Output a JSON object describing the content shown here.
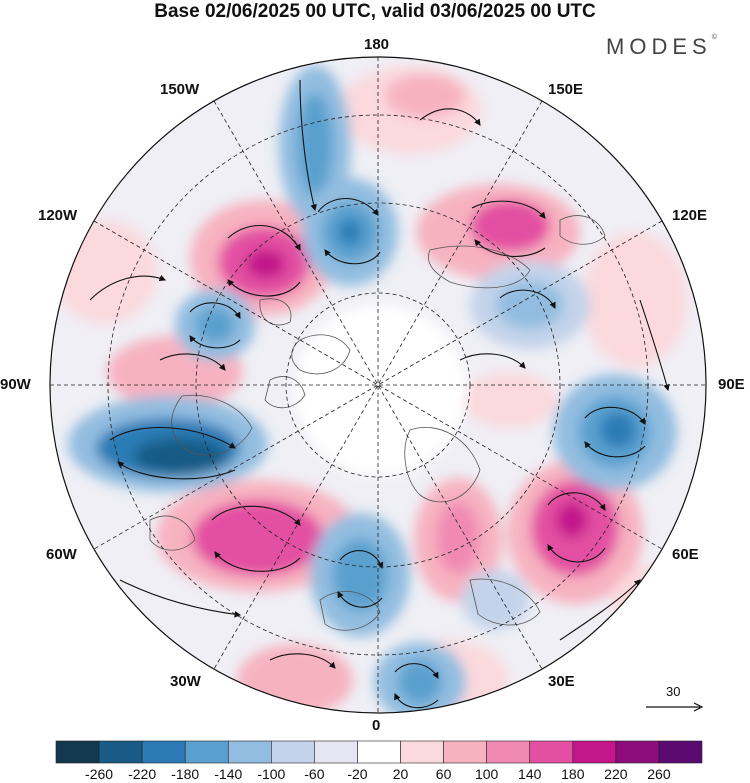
{
  "header": {
    "title": "Base 02/06/2025 00 UTC, valid 03/06/2025 00 UTC",
    "brand": "MODES",
    "brand_mark": "©"
  },
  "map": {
    "projection": "north-polar-stereographic",
    "longitude_labels": {
      "top": "180",
      "top_right": "150E",
      "upper_right": "120E",
      "right": "90E",
      "lower_right": "60E",
      "bottom_right": "30E",
      "bottom": "0",
      "bottom_left": "30W",
      "lower_left": "60W",
      "left": "90W",
      "upper_left": "120W",
      "top_left": "150W"
    },
    "vector_scale_label": "30"
  },
  "colorbar": {
    "colors": [
      "#12394f",
      "#195b86",
      "#2c7bb6",
      "#5aa0cf",
      "#92bde0",
      "#c3d3ea",
      "#e6e6f3",
      "#ffffff",
      "#fbd9dd",
      "#f7b2c0",
      "#f08ab4",
      "#e34fa2",
      "#c2168a",
      "#8e0b7c",
      "#5a0a6f"
    ],
    "labels": [
      "-260",
      "-220",
      "-180",
      "-140",
      "-100",
      "-60",
      "-20",
      "20",
      "60",
      "100",
      "140",
      "180",
      "220",
      "260"
    ]
  }
}
